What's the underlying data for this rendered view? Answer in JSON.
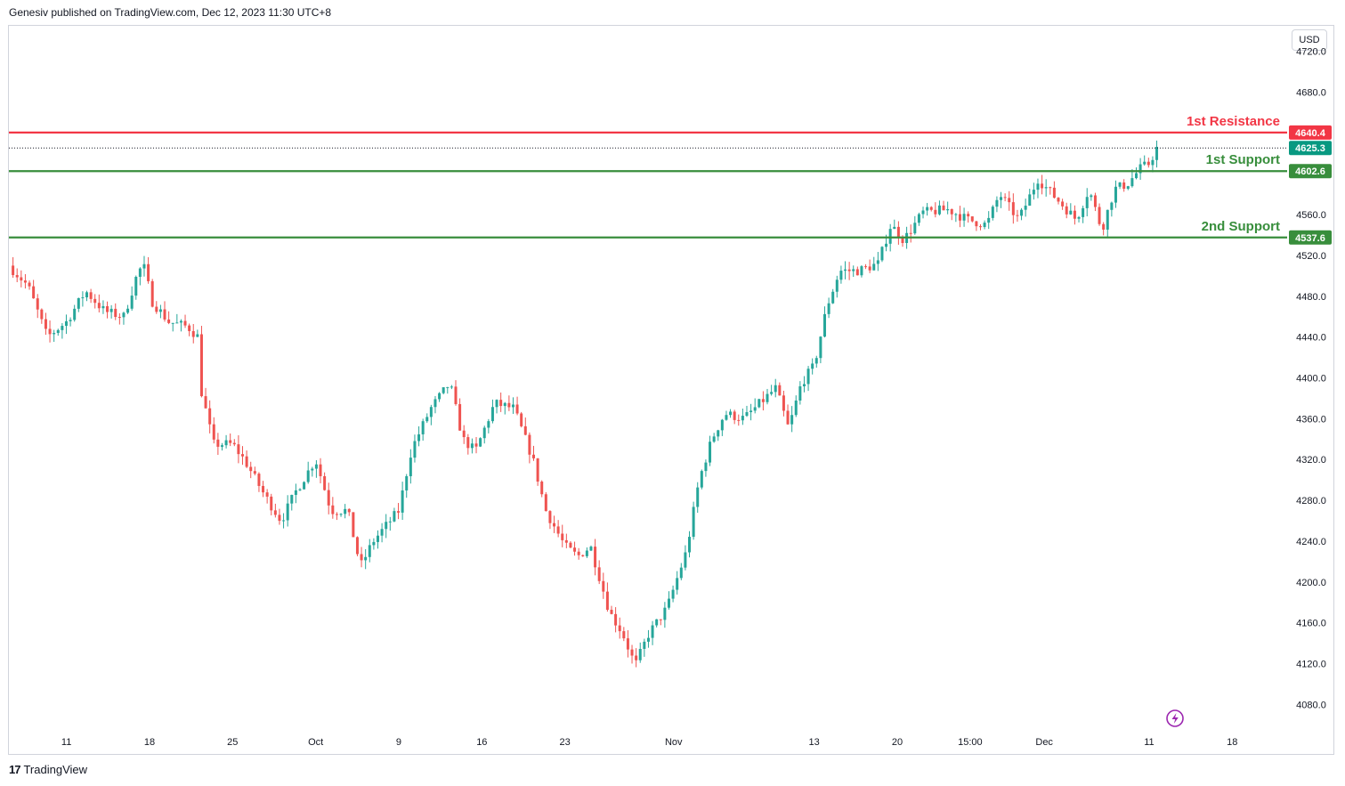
{
  "header": {
    "publisher_text": "Genesiv published on TradingView.com, Dec 12, 2023 11:30 UTC+8"
  },
  "footer": {
    "brand": "TradingView",
    "logo_glyph": "17"
  },
  "currency": "USD",
  "colors": {
    "up": "#26a69a",
    "down": "#ef5350",
    "resistance": "#f23645",
    "support": "#388e3c",
    "last": "#089981",
    "replay": "#9c27b0"
  },
  "chart_data": {
    "type": "candlestick",
    "ylim": [
      4055,
      4745
    ],
    "yticks": [
      4080,
      4120,
      4160,
      4200,
      4240,
      4280,
      4320,
      4360,
      4400,
      4440,
      4480,
      4520,
      4560,
      4600,
      4640,
      4680,
      4720
    ],
    "ytick_labels": [
      "4080.0",
      "4120.0",
      "4160.0",
      "4200.0",
      "4240.0",
      "4280.0",
      "4320.0",
      "4360.0",
      "4400.0",
      "4440.0",
      "4480.0",
      "4520.0",
      "4560.0",
      "4600.0",
      "4640.0",
      "4680.0",
      "4720.0"
    ],
    "xticks": [
      {
        "label": "11",
        "t": 0.045
      },
      {
        "label": "18",
        "t": 0.11
      },
      {
        "label": "25",
        "t": 0.175
      },
      {
        "label": "Oct",
        "t": 0.24
      },
      {
        "label": "9",
        "t": 0.305
      },
      {
        "label": "16",
        "t": 0.37
      },
      {
        "label": "23",
        "t": 0.435
      },
      {
        "label": "Nov",
        "t": 0.52
      },
      {
        "label": "13",
        "t": 0.63
      },
      {
        "label": "20",
        "t": 0.695
      },
      {
        "label": "15:00",
        "t": 0.752
      },
      {
        "label": "Dec",
        "t": 0.81
      },
      {
        "label": "11",
        "t": 0.892
      },
      {
        "label": "18",
        "t": 0.957
      }
    ],
    "levels": [
      {
        "name": "1st Resistance",
        "value": 4640.4,
        "badge": "4640.4",
        "color": "#f23645",
        "style": "solid"
      },
      {
        "name": "1st Support",
        "value": 4602.6,
        "badge": "4602.6",
        "color": "#388e3c",
        "style": "solid"
      },
      {
        "name": "2nd Support",
        "value": 4537.6,
        "badge": "4537.6",
        "color": "#388e3c",
        "style": "solid"
      }
    ],
    "last_price": {
      "value": 4625.3,
      "badge": "4625.3"
    },
    "price_path": [
      {
        "t": 0.0,
        "v": 4510
      },
      {
        "t": 0.015,
        "v": 4490
      },
      {
        "t": 0.03,
        "v": 4440
      },
      {
        "t": 0.045,
        "v": 4455
      },
      {
        "t": 0.06,
        "v": 4485
      },
      {
        "t": 0.075,
        "v": 4465
      },
      {
        "t": 0.09,
        "v": 4460
      },
      {
        "t": 0.1,
        "v": 4500
      },
      {
        "t": 0.105,
        "v": 4512
      },
      {
        "t": 0.112,
        "v": 4475
      },
      {
        "t": 0.125,
        "v": 4455
      },
      {
        "t": 0.14,
        "v": 4450
      },
      {
        "t": 0.148,
        "v": 4440
      },
      {
        "t": 0.15,
        "v": 4390
      },
      {
        "t": 0.16,
        "v": 4335
      },
      {
        "t": 0.175,
        "v": 4335
      },
      {
        "t": 0.185,
        "v": 4318
      },
      {
        "t": 0.2,
        "v": 4285
      },
      {
        "t": 0.213,
        "v": 4260
      },
      {
        "t": 0.225,
        "v": 4290
      },
      {
        "t": 0.24,
        "v": 4320
      },
      {
        "t": 0.252,
        "v": 4270
      },
      {
        "t": 0.265,
        "v": 4270
      },
      {
        "t": 0.275,
        "v": 4215
      },
      {
        "t": 0.285,
        "v": 4240
      },
      {
        "t": 0.295,
        "v": 4255
      },
      {
        "t": 0.305,
        "v": 4270
      },
      {
        "t": 0.315,
        "v": 4330
      },
      {
        "t": 0.33,
        "v": 4370
      },
      {
        "t": 0.345,
        "v": 4395
      },
      {
        "t": 0.355,
        "v": 4340
      },
      {
        "t": 0.365,
        "v": 4328
      },
      {
        "t": 0.38,
        "v": 4375
      },
      {
        "t": 0.395,
        "v": 4370
      },
      {
        "t": 0.41,
        "v": 4320
      },
      {
        "t": 0.42,
        "v": 4270
      },
      {
        "t": 0.435,
        "v": 4235
      },
      {
        "t": 0.445,
        "v": 4225
      },
      {
        "t": 0.455,
        "v": 4235
      },
      {
        "t": 0.47,
        "v": 4170
      },
      {
        "t": 0.48,
        "v": 4150
      },
      {
        "t": 0.49,
        "v": 4118
      },
      {
        "t": 0.5,
        "v": 4148
      },
      {
        "t": 0.515,
        "v": 4175
      },
      {
        "t": 0.53,
        "v": 4230
      },
      {
        "t": 0.54,
        "v": 4300
      },
      {
        "t": 0.55,
        "v": 4340
      },
      {
        "t": 0.56,
        "v": 4365
      },
      {
        "t": 0.575,
        "v": 4360
      },
      {
        "t": 0.59,
        "v": 4378
      },
      {
        "t": 0.6,
        "v": 4390
      },
      {
        "t": 0.61,
        "v": 4350
      },
      {
        "t": 0.62,
        "v": 4395
      },
      {
        "t": 0.63,
        "v": 4412
      },
      {
        "t": 0.64,
        "v": 4470
      },
      {
        "t": 0.65,
        "v": 4505
      },
      {
        "t": 0.665,
        "v": 4505
      },
      {
        "t": 0.68,
        "v": 4512
      },
      {
        "t": 0.69,
        "v": 4550
      },
      {
        "t": 0.7,
        "v": 4535
      },
      {
        "t": 0.715,
        "v": 4562
      },
      {
        "t": 0.735,
        "v": 4565
      },
      {
        "t": 0.75,
        "v": 4555
      },
      {
        "t": 0.765,
        "v": 4550
      },
      {
        "t": 0.775,
        "v": 4580
      },
      {
        "t": 0.79,
        "v": 4555
      },
      {
        "t": 0.805,
        "v": 4595
      },
      {
        "t": 0.82,
        "v": 4575
      },
      {
        "t": 0.835,
        "v": 4555
      },
      {
        "t": 0.845,
        "v": 4585
      },
      {
        "t": 0.855,
        "v": 4545
      },
      {
        "t": 0.865,
        "v": 4585
      },
      {
        "t": 0.875,
        "v": 4590
      },
      {
        "t": 0.885,
        "v": 4605
      },
      {
        "t": 0.892,
        "v": 4610
      },
      {
        "t": 0.898,
        "v": 4625
      }
    ]
  }
}
